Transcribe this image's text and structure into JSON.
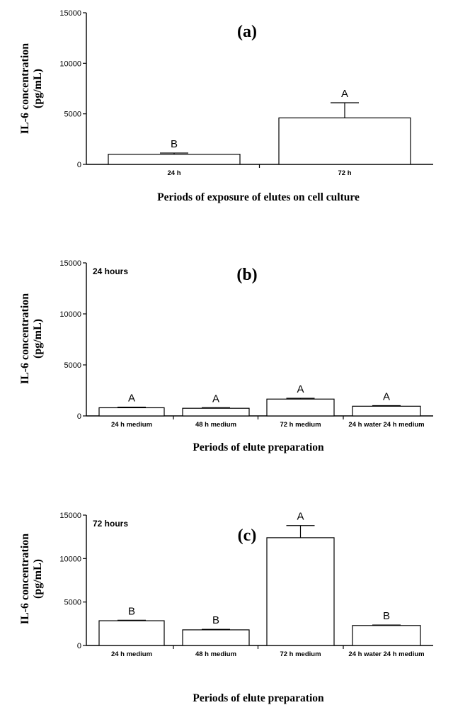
{
  "chart_data": [
    {
      "type": "bar",
      "panel_label": "(a)",
      "inset_label": "",
      "categories": [
        "24 h",
        "72 h"
      ],
      "values": [
        1000,
        4600
      ],
      "errors": [
        120,
        1500
      ],
      "letters": [
        "B",
        "A"
      ],
      "ylabel": "IL-6 concentration",
      "ylabel_unit": "(pg/mL)",
      "xlabel": "Periods of exposure of elutes on cell culture",
      "ylim": [
        0,
        15000
      ],
      "yticks": [
        0,
        5000,
        10000,
        15000
      ],
      "ytick_labels": [
        "0",
        "5000",
        "10000",
        "15000"
      ]
    },
    {
      "type": "bar",
      "panel_label": "(b)",
      "inset_label": "24 hours",
      "categories": [
        "24 h medium",
        "48 h medium",
        "72 h medium",
        "24 h water 24 h medium"
      ],
      "values": [
        800,
        750,
        1650,
        950
      ],
      "errors": [
        60,
        60,
        80,
        60
      ],
      "letters": [
        "A",
        "A",
        "A",
        "A"
      ],
      "ylabel": "IL-6 concentration",
      "ylabel_unit": "(pg/mL)",
      "xlabel": "Periods of elute preparation",
      "ylim": [
        0,
        15000
      ],
      "yticks": [
        0,
        5000,
        10000,
        15000
      ],
      "ytick_labels": [
        "0",
        "5000",
        "10000",
        "15000"
      ]
    },
    {
      "type": "bar",
      "panel_label": "(c)",
      "inset_label": "72 hours",
      "categories": [
        "24 h medium",
        "48 h medium",
        "72 h medium",
        "24 h water 24 h medium"
      ],
      "values": [
        2850,
        1800,
        12400,
        2300
      ],
      "errors": [
        60,
        60,
        1400,
        60
      ],
      "letters": [
        "B",
        "B",
        "A",
        "B"
      ],
      "ylabel": "IL-6 concentration",
      "ylabel_unit": "(pg/mL)",
      "xlabel": "Periods of elute preparation",
      "ylim": [
        0,
        15000
      ],
      "yticks": [
        0,
        5000,
        10000,
        15000
      ],
      "ytick_labels": [
        "0",
        "5000",
        "10000",
        "15000"
      ]
    }
  ]
}
